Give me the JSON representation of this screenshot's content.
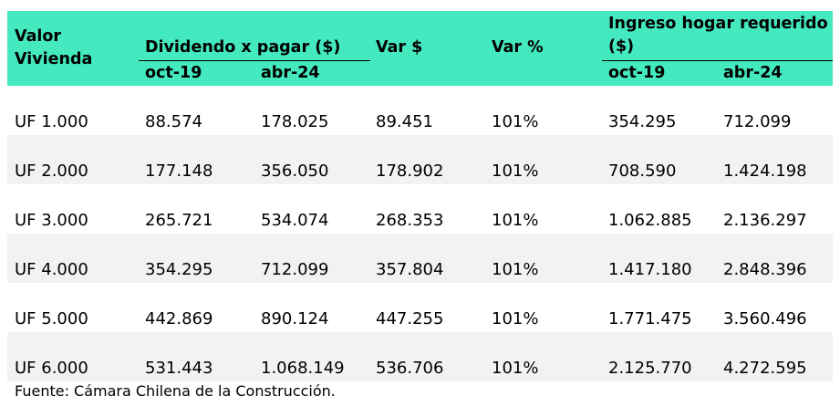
{
  "header": {
    "valor_vivienda": "Valor\nVivienda",
    "dividendo": "Dividendo x pagar ($)",
    "var_pesos": "Var $",
    "var_pct": "Var %",
    "ingreso": "Ingreso hogar requerido ($)",
    "oct19_a": "oct-19",
    "abr24_a": "abr-24",
    "oct19_b": "oct-19",
    "abr24_b": "abr-24"
  },
  "colors": {
    "header_bg": "#44e9bf",
    "row_shade": "#f2f2f2"
  },
  "rows": [
    [
      "UF 1.000",
      "88.574",
      "178.025",
      "89.451",
      "101%",
      "354.295",
      "712.099"
    ],
    [
      "UF 2.000",
      "177.148",
      "356.050",
      "178.902",
      "101%",
      "708.590",
      "1.424.198"
    ],
    [
      "UF 3.000",
      "265.721",
      "534.074",
      "268.353",
      "101%",
      "1.062.885",
      "2.136.297"
    ],
    [
      "UF 4.000",
      "354.295",
      "712.099",
      "357.804",
      "101%",
      "1.417.180",
      "2.848.396"
    ],
    [
      "UF 5.000",
      "442.869",
      "890.124",
      "447.255",
      "101%",
      "1.771.475",
      "3.560.496"
    ],
    [
      "UF 6.000",
      "531.443",
      "1.068.149",
      "536.706",
      "101%",
      "2.125.770",
      "4.272.595"
    ]
  ],
  "source": "Fuente: Cámara Chilena de la Construcción."
}
